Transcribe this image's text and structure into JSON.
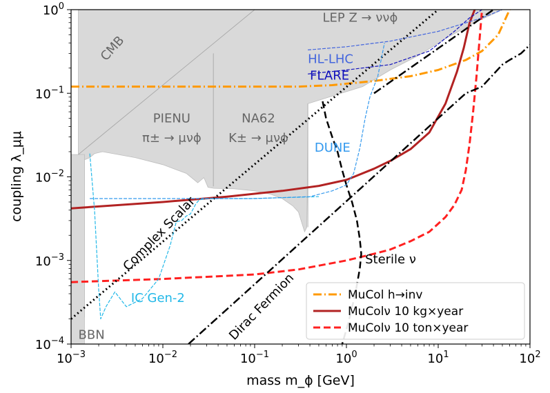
{
  "chart_data": {
    "type": "line",
    "title": "",
    "xlabel": "mass m_ϕ [GeV]",
    "ylabel": "coupling λ_μμ",
    "xscale": "log",
    "yscale": "log",
    "xlim": [
      0.001,
      100
    ],
    "ylim": [
      0.0001,
      1
    ],
    "grid": false,
    "x_ticks": [
      {
        "value": 0.001,
        "base": "10",
        "exp": "−3"
      },
      {
        "value": 0.01,
        "base": "10",
        "exp": "−2"
      },
      {
        "value": 0.1,
        "base": "10",
        "exp": "−1"
      },
      {
        "value": 1,
        "base": "10",
        "exp": "0"
      },
      {
        "value": 10,
        "base": "10",
        "exp": "1"
      },
      {
        "value": 100,
        "base": "10",
        "exp": "2"
      }
    ],
    "y_ticks": [
      {
        "value": 0.0001,
        "base": "10",
        "exp": "−4"
      },
      {
        "value": 0.001,
        "base": "10",
        "exp": "−3"
      },
      {
        "value": 0.01,
        "base": "10",
        "exp": "−2"
      },
      {
        "value": 0.1,
        "base": "10",
        "exp": "−1"
      },
      {
        "value": 1,
        "base": "10",
        "exp": "0"
      }
    ],
    "excluded_regions": [
      {
        "name": "CMB / LEP exclusion",
        "color": "#d9d9d9",
        "points": [
          [
            0.0012,
            1
          ],
          [
            0.0012,
            0.00021
          ],
          [
            0.0014,
            0.00021
          ],
          [
            0.0014,
            0.016
          ],
          [
            0.0016,
            0.017
          ],
          [
            0.0018,
            0.019
          ],
          [
            0.0022,
            0.02
          ],
          [
            0.005,
            0.017
          ],
          [
            0.01,
            0.014
          ],
          [
            0.018,
            0.011
          ],
          [
            0.024,
            0.0085
          ],
          [
            0.028,
            0.0098
          ],
          [
            0.031,
            0.0075
          ],
          [
            0.036,
            0.0073
          ],
          [
            0.06,
            0.0072
          ],
          [
            0.1,
            0.0068
          ],
          [
            0.15,
            0.0062
          ],
          [
            0.2,
            0.0055
          ],
          [
            0.26,
            0.0045
          ],
          [
            0.3,
            0.0038
          ],
          [
            0.33,
            0.0027
          ],
          [
            0.35,
            0.0022
          ],
          [
            0.37,
            0.0025
          ],
          [
            0.38,
            0.03
          ],
          [
            0.38,
            0.075
          ],
          [
            1.5,
            0.12
          ],
          [
            3,
            0.19
          ],
          [
            6,
            0.28
          ],
          [
            12,
            0.45
          ],
          [
            25,
            0.7
          ],
          [
            50,
            1
          ]
        ]
      },
      {
        "name": "BBN",
        "color": "#d9d9d9",
        "points": [
          [
            0.001,
            0.0001
          ],
          [
            0.0014,
            0.0001
          ],
          [
            0.0014,
            0.0185
          ],
          [
            0.001,
            0.0185
          ]
        ]
      }
    ],
    "boundaries": [
      {
        "name": "CMB boundary",
        "points": [
          [
            0.0012,
            0.0185
          ],
          [
            0.1,
            1
          ]
        ]
      },
      {
        "name": "PIENU / NA62 divider",
        "points": [
          [
            0.0355,
            0.0077
          ],
          [
            0.0355,
            0.3
          ]
        ]
      },
      {
        "name": "NA62 right edge",
        "points": [
          [
            0.38,
            0.0025
          ],
          [
            0.38,
            0.075
          ]
        ]
      }
    ],
    "series": [
      {
        "name": "MuCol h→inv",
        "color": "#ff9900",
        "dash": "dashdot",
        "width": 3,
        "points": [
          [
            0.001,
            0.12
          ],
          [
            0.1,
            0.12
          ],
          [
            0.3,
            0.12
          ],
          [
            0.7,
            0.125
          ],
          [
            1,
            0.13
          ],
          [
            2,
            0.14
          ],
          [
            5,
            0.16
          ],
          [
            10,
            0.19
          ],
          [
            20,
            0.25
          ],
          [
            30,
            0.32
          ],
          [
            45,
            0.5
          ],
          [
            60,
            1
          ]
        ]
      },
      {
        "name": "MuColν 10 kg×year",
        "color": "#b22222",
        "dash": "solid",
        "width": 3,
        "points": [
          [
            0.001,
            0.0042
          ],
          [
            0.01,
            0.005
          ],
          [
            0.05,
            0.0058
          ],
          [
            0.2,
            0.0068
          ],
          [
            0.5,
            0.0078
          ],
          [
            1,
            0.0092
          ],
          [
            2,
            0.0125
          ],
          [
            3,
            0.0155
          ],
          [
            5,
            0.0215
          ],
          [
            8,
            0.034
          ],
          [
            12,
            0.075
          ],
          [
            16,
            0.18
          ],
          [
            19,
            0.35
          ],
          [
            22,
            0.7
          ],
          [
            25,
            1
          ]
        ]
      },
      {
        "name": "MuColν 10 ton×year",
        "color": "#ff2020",
        "dash": "dashed",
        "width": 3,
        "points": [
          [
            0.001,
            0.00055
          ],
          [
            0.01,
            0.0006
          ],
          [
            0.1,
            0.00068
          ],
          [
            0.3,
            0.00078
          ],
          [
            0.6,
            0.0009
          ],
          [
            1,
            0.001
          ],
          [
            2,
            0.0012
          ],
          [
            3,
            0.00135
          ],
          [
            5,
            0.0017
          ],
          [
            8,
            0.0022
          ],
          [
            12,
            0.0033
          ],
          [
            15,
            0.0046
          ],
          [
            18,
            0.007
          ],
          [
            20,
            0.012
          ],
          [
            22,
            0.025
          ],
          [
            24,
            0.06
          ],
          [
            26,
            0.15
          ],
          [
            28,
            0.4
          ],
          [
            30,
            1
          ]
        ]
      },
      {
        "name": "Complex Scalar",
        "color": "#000000",
        "dash": "dotted",
        "width": 3,
        "points": [
          [
            0.001,
            0.0002
          ],
          [
            10,
            1
          ]
        ]
      },
      {
        "name": "Dirac Fermion",
        "color": "#000000",
        "dash": "dashdot",
        "width": 2.5,
        "points": [
          [
            0.019,
            0.0001
          ],
          [
            20,
            0.1
          ],
          [
            30,
            0.12
          ],
          [
            50,
            0.22
          ],
          [
            60,
            0.25
          ],
          [
            80,
            0.3
          ],
          [
            100,
            0.38
          ]
        ]
      },
      {
        "name": "Dirac Fermion (upper)",
        "color": "#000000",
        "dash": "dashdot",
        "width": 2.5,
        "points": [
          [
            2,
            0.1
          ],
          [
            40,
            1
          ]
        ]
      },
      {
        "name": "Sterile ν",
        "color": "#000000",
        "dash": "dashed",
        "width": 2.5,
        "points": [
          [
            0.55,
            0.08
          ],
          [
            0.6,
            0.05
          ],
          [
            0.7,
            0.03
          ],
          [
            0.8,
            0.02
          ],
          [
            0.9,
            0.012
          ],
          [
            1,
            0.008
          ],
          [
            1.15,
            0.005
          ],
          [
            1.3,
            0.003
          ],
          [
            1.4,
            0.0018
          ],
          [
            1.45,
            0.0012
          ],
          [
            1.4,
            0.0008
          ],
          [
            1.25,
            0.0004
          ],
          [
            1.05,
            0.00018
          ],
          [
            0.9,
            0.0001
          ]
        ]
      },
      {
        "name": "IC Gen-2",
        "color": "#22b8e8",
        "dash": "thin-dashed",
        "width": 1.2,
        "points": [
          [
            0.0016,
            0.019
          ],
          [
            0.0018,
            0.004
          ],
          [
            0.002,
            0.00045
          ],
          [
            0.0021,
            0.0002
          ],
          [
            0.0024,
            0.00028
          ],
          [
            0.003,
            0.00042
          ],
          [
            0.004,
            0.00028
          ],
          [
            0.006,
            0.00035
          ],
          [
            0.009,
            0.0006
          ],
          [
            0.012,
            0.0015
          ],
          [
            0.014,
            0.0029
          ],
          [
            0.016,
            0.003
          ],
          [
            0.018,
            0.0034
          ],
          [
            0.02,
            0.0036
          ],
          [
            0.023,
            0.0048
          ],
          [
            0.025,
            0.0053
          ],
          [
            0.03,
            0.0055
          ],
          [
            0.09,
            0.0055
          ],
          [
            0.5,
            0.0058
          ]
        ]
      },
      {
        "name": "DUNE",
        "color": "#3399ee",
        "dash": "thin-dashed",
        "width": 1.2,
        "points": [
          [
            0.0016,
            0.0055
          ],
          [
            0.1,
            0.0055
          ],
          [
            0.4,
            0.0058
          ],
          [
            0.7,
            0.0068
          ],
          [
            1,
            0.008
          ],
          [
            1.2,
            0.011
          ],
          [
            1.4,
            0.022
          ],
          [
            1.6,
            0.05
          ],
          [
            1.8,
            0.09
          ],
          [
            2.2,
            0.16
          ],
          [
            2.6,
            0.4
          ]
        ]
      },
      {
        "name": "HL-LHC",
        "color": "#4466dd",
        "dash": "thin-dashed",
        "width": 1.2,
        "points": [
          [
            0.38,
            0.33
          ],
          [
            1,
            0.36
          ],
          [
            3,
            0.42
          ],
          [
            10,
            0.55
          ],
          [
            30,
            0.8
          ],
          [
            50,
            1
          ]
        ]
      },
      {
        "name": "FLARE",
        "color": "#1111bb",
        "dash": "thin-dashed",
        "width": 1.2,
        "points": [
          [
            0.38,
            0.17
          ],
          [
            1,
            0.19
          ],
          [
            3,
            0.22
          ],
          [
            8,
            0.32
          ],
          [
            15,
            0.55
          ],
          [
            22,
            0.8
          ],
          [
            30,
            1
          ]
        ]
      }
    ],
    "region_labels": [
      {
        "id": "cmb",
        "text": "CMB",
        "color": "#666666",
        "x": 0.0024,
        "y": 0.24,
        "rotate": -48
      },
      {
        "id": "lep",
        "text": "LEP Z → ννϕ",
        "color": "#666666",
        "x": 0.55,
        "y": 0.72
      },
      {
        "id": "pienu",
        "text": "PIENU",
        "color": "#666666",
        "x": 0.0125,
        "y": 0.045
      },
      {
        "id": "pienu-proc",
        "text": "π± → μνϕ",
        "color": "#666666",
        "x": 0.0125,
        "y": 0.026
      },
      {
        "id": "na62",
        "text": "NA62",
        "color": "#666666",
        "x": 0.11,
        "y": 0.045
      },
      {
        "id": "na62-proc",
        "text": "K± → μνϕ",
        "color": "#666666",
        "x": 0.11,
        "y": 0.026
      },
      {
        "id": "dune",
        "text": "DUNE",
        "color": "#3399ee",
        "x": 0.45,
        "y": 0.02
      },
      {
        "id": "hl-lhc",
        "text": "HL-LHC",
        "color": "#4466dd",
        "x": 0.38,
        "y": 0.23
      },
      {
        "id": "flare",
        "text": "FLARE",
        "color": "#1111bb",
        "x": 0.4,
        "y": 0.145
      },
      {
        "id": "ic-gen2",
        "text": "IC Gen-2",
        "color": "#22b8e8",
        "x": 0.0045,
        "y": 0.00032
      },
      {
        "id": "bbn",
        "text": "BBN",
        "color": "#666666",
        "x": 0.0012,
        "y": 0.000115
      },
      {
        "id": "complex-scalar",
        "text": "Complex Scalar",
        "color": "#000000",
        "x": 0.0042,
        "y": 0.00074,
        "rotate": -46
      },
      {
        "id": "dirac-fermion",
        "text": "Dirac Fermion",
        "color": "#000000",
        "x": 0.06,
        "y": 0.00011,
        "rotate": -46
      },
      {
        "id": "sterile-nu",
        "text": "Sterile ν",
        "color": "#000000",
        "x": 1.6,
        "y": 0.00092
      }
    ],
    "legend": {
      "position": "bottom-right",
      "entries": [
        {
          "label": "MuCol   h→inv",
          "color": "#ff9900",
          "dash": "dashdot"
        },
        {
          "label": "MuColν 10 kg×year",
          "color": "#b22222",
          "dash": "solid"
        },
        {
          "label": "MuColν 10 ton×year",
          "color": "#ff2020",
          "dash": "dashed"
        }
      ]
    }
  }
}
